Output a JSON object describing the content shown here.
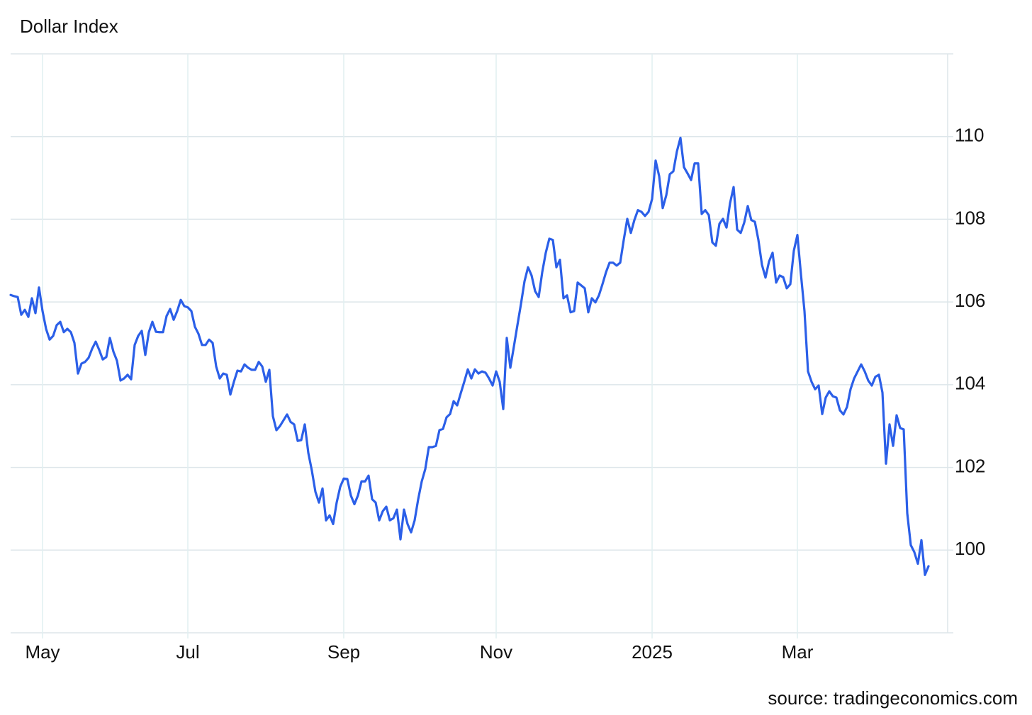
{
  "chart_data": {
    "type": "line",
    "title": "Dollar Index",
    "source": "source: tradingeconomics.com",
    "categories": [
      null,
      null,
      null,
      null,
      null,
      null,
      null,
      null,
      null,
      "May",
      null,
      null,
      null,
      null,
      null,
      null,
      null,
      null,
      null,
      null,
      null,
      null,
      null,
      null,
      null,
      null,
      null,
      null,
      null,
      null,
      null,
      null,
      null,
      null,
      null,
      null,
      null,
      null,
      null,
      null,
      null,
      null,
      null,
      null,
      null,
      null,
      null,
      null,
      null,
      null,
      "Jul",
      null,
      null,
      null,
      null,
      null,
      null,
      null,
      null,
      null,
      null,
      null,
      null,
      null,
      null,
      null,
      null,
      null,
      null,
      null,
      null,
      null,
      null,
      null,
      null,
      null,
      null,
      null,
      null,
      null,
      null,
      null,
      null,
      null,
      null,
      null,
      null,
      null,
      null,
      null,
      null,
      null,
      null,
      null,
      "Sep",
      null,
      null,
      null,
      null,
      null,
      null,
      null,
      null,
      null,
      null,
      null,
      null,
      null,
      null,
      null,
      null,
      null,
      null,
      null,
      null,
      null,
      null,
      null,
      null,
      null,
      null,
      null,
      null,
      null,
      null,
      null,
      null,
      null,
      null,
      null,
      null,
      null,
      null,
      null,
      null,
      null,
      null,
      "Nov",
      null,
      null,
      null,
      null,
      null,
      null,
      null,
      null,
      null,
      null,
      null,
      null,
      null,
      null,
      null,
      null,
      null,
      null,
      null,
      null,
      null,
      null,
      null,
      null,
      null,
      null,
      null,
      null,
      null,
      null,
      null,
      null,
      null,
      null,
      null,
      null,
      null,
      null,
      null,
      null,
      null,
      null,
      null,
      "2025",
      null,
      null,
      null,
      null,
      null,
      null,
      null,
      null,
      null,
      null,
      null,
      null,
      null,
      null,
      null,
      null,
      null,
      null,
      null,
      null,
      null,
      null,
      null,
      null,
      null,
      null,
      null,
      null,
      null,
      null,
      null,
      null,
      null,
      null,
      null,
      null,
      null,
      null,
      null,
      null,
      "Mar",
      null,
      null,
      null,
      null,
      null,
      null,
      null,
      null,
      null,
      null,
      null,
      null,
      null,
      null,
      null,
      null,
      null,
      null,
      null,
      null,
      null,
      null,
      null,
      null,
      null,
      null,
      null,
      null,
      null,
      null,
      null,
      null,
      null,
      null,
      null,
      null,
      null
    ],
    "values": [
      106.17,
      106.14,
      106.12,
      105.69,
      105.81,
      105.64,
      106.09,
      105.73,
      106.35,
      105.78,
      105.35,
      105.09,
      105.18,
      105.44,
      105.52,
      105.27,
      105.35,
      105.27,
      105.01,
      104.27,
      104.51,
      104.55,
      104.65,
      104.87,
      105.04,
      104.84,
      104.61,
      104.67,
      105.13,
      104.8,
      104.58,
      104.1,
      104.15,
      104.24,
      104.13,
      104.96,
      105.18,
      105.3,
      104.72,
      105.27,
      105.52,
      105.28,
      105.27,
      105.27,
      105.66,
      105.83,
      105.57,
      105.78,
      106.05,
      105.9,
      105.87,
      105.78,
      105.4,
      105.23,
      104.96,
      104.96,
      105.09,
      105.01,
      104.44,
      104.15,
      104.27,
      104.24,
      103.76,
      104.07,
      104.34,
      104.32,
      104.49,
      104.41,
      104.36,
      104.36,
      104.55,
      104.44,
      104.07,
      104.36,
      103.24,
      102.9,
      103.0,
      103.14,
      103.28,
      103.1,
      103.04,
      102.64,
      102.66,
      103.04,
      102.35,
      101.92,
      101.41,
      101.15,
      101.49,
      100.72,
      100.84,
      100.63,
      101.15,
      101.53,
      101.73,
      101.72,
      101.32,
      101.11,
      101.32,
      101.66,
      101.66,
      101.8,
      101.23,
      101.15,
      100.72,
      100.94,
      101.05,
      100.72,
      100.77,
      100.98,
      100.26,
      100.98,
      100.63,
      100.43,
      100.72,
      101.23,
      101.66,
      101.96,
      102.49,
      102.49,
      102.52,
      102.9,
      102.93,
      103.21,
      103.29,
      103.6,
      103.5,
      103.79,
      104.07,
      104.37,
      104.15,
      104.37,
      104.27,
      104.32,
      104.29,
      104.15,
      103.98,
      104.32,
      104.07,
      103.41,
      105.13,
      104.41,
      104.92,
      105.44,
      105.95,
      106.5,
      106.84,
      106.64,
      106.26,
      106.12,
      106.72,
      107.19,
      107.53,
      107.5,
      106.84,
      107.02,
      106.09,
      106.16,
      105.75,
      105.78,
      106.47,
      106.4,
      106.33,
      105.75,
      106.09,
      105.99,
      106.16,
      106.43,
      106.72,
      106.95,
      106.95,
      106.88,
      106.95,
      107.5,
      108.01,
      107.67,
      107.98,
      108.22,
      108.18,
      108.08,
      108.18,
      108.49,
      109.42,
      109.04,
      108.27,
      108.58,
      109.09,
      109.16,
      109.64,
      109.97,
      109.26,
      109.11,
      108.95,
      109.35,
      109.35,
      108.13,
      108.22,
      108.1,
      107.44,
      107.36,
      107.89,
      108.01,
      107.8,
      108.39,
      108.78,
      107.75,
      107.67,
      107.92,
      108.32,
      107.98,
      107.94,
      107.5,
      106.9,
      106.59,
      106.98,
      107.19,
      106.47,
      106.64,
      106.6,
      106.33,
      106.43,
      107.24,
      107.62,
      106.67,
      105.78,
      104.32,
      104.07,
      103.89,
      103.98,
      103.29,
      103.69,
      103.84,
      103.72,
      103.69,
      103.38,
      103.28,
      103.46,
      103.89,
      104.15,
      104.32,
      104.49,
      104.32,
      104.1,
      103.98,
      104.19,
      104.24,
      103.81,
      102.09,
      103.04,
      102.52,
      103.26,
      102.95,
      102.92,
      100.89,
      100.12,
      99.95,
      99.67,
      100.24,
      99.4,
      99.61
    ],
    "color": "#2b5fe8",
    "ylim": [
      98,
      112
    ],
    "yticks": [
      100,
      102,
      104,
      106,
      108,
      110
    ],
    "grid": true
  }
}
